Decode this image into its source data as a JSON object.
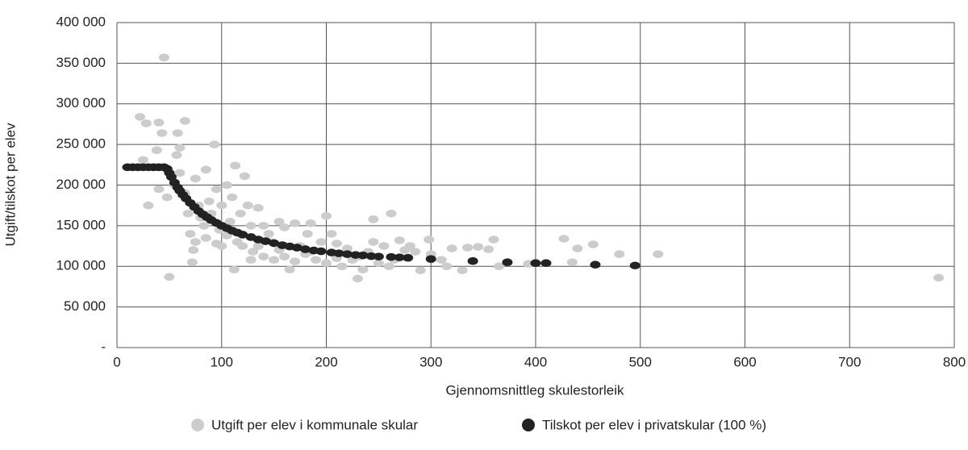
{
  "chart_data": {
    "type": "scatter",
    "xlabel": "Gjennomsnittleg skulestorleik",
    "ylabel": "Utgift/tilskot per elev",
    "xlim": [
      0,
      800
    ],
    "xticks": [
      0,
      100,
      200,
      300,
      400,
      500,
      600,
      700,
      800
    ],
    "ylim": [
      0,
      400000
    ],
    "yticks": [
      {
        "value": 0,
        "label": "-"
      },
      {
        "value": 50000,
        "label": "50 000"
      },
      {
        "value": 100000,
        "label": "100 000"
      },
      {
        "value": 150000,
        "label": "150 000"
      },
      {
        "value": 200000,
        "label": "200 000"
      },
      {
        "value": 250000,
        "label": "250 000"
      },
      {
        "value": 300000,
        "label": "300 000"
      },
      {
        "value": 350000,
        "label": "350 000"
      },
      {
        "value": 400000,
        "label": "400 000"
      }
    ],
    "grid": true,
    "series": [
      {
        "name": "Utgift per elev i kommunale skular",
        "color": "#cccccc",
        "x": [
          45,
          22,
          28,
          40,
          65,
          43,
          58,
          93,
          60,
          38,
          57,
          25,
          85,
          113,
          122,
          75,
          30,
          50,
          72,
          230,
          785,
          517,
          480,
          427,
          440,
          455,
          435,
          393,
          355,
          360,
          345,
          320,
          335,
          330,
          298,
          285,
          262,
          245,
          200,
          185,
          170,
          160,
          155,
          140,
          135,
          125,
          110,
          105,
          100,
          90,
          80,
          70,
          68,
          75,
          85,
          95,
          105,
          115,
          120,
          130,
          140,
          150,
          160,
          170,
          180,
          190,
          200,
          210,
          215,
          225,
          235,
          240,
          250,
          255,
          265,
          275,
          290,
          310,
          315,
          300,
          232,
          175,
          145,
          135,
          112,
          128,
          165,
          195,
          210,
          220,
          155,
          185,
          60,
          55,
          48,
          40,
          65,
          78,
          88,
          95,
          118,
          98,
          108,
          128,
          148,
          182,
          205,
          365,
          280,
          270,
          245,
          260,
          100,
          83,
          73
        ],
        "values": [
          357000,
          284000,
          276000,
          277000,
          279000,
          264000,
          264000,
          250000,
          246000,
          243000,
          237000,
          231000,
          219000,
          224000,
          211000,
          208000,
          175000,
          87000,
          105000,
          85000,
          86000,
          115000,
          115000,
          134000,
          122000,
          127000,
          105000,
          103000,
          121000,
          133000,
          124000,
          122000,
          123000,
          95000,
          133000,
          118000,
          165000,
          158000,
          162000,
          153000,
          153000,
          148000,
          155000,
          150000,
          172000,
          175000,
          185000,
          200000,
          175000,
          165000,
          160000,
          140000,
          165000,
          130000,
          135000,
          128000,
          138000,
          130000,
          125000,
          118000,
          112000,
          108000,
          112000,
          106000,
          115000,
          108000,
          104000,
          110000,
          100000,
          108000,
          96000,
          118000,
          104000,
          125000,
          108000,
          120000,
          95000,
          108000,
          100000,
          115000,
          112000,
          125000,
          140000,
          125000,
          96000,
          108000,
          96000,
          130000,
          128000,
          122000,
          120000,
          118000,
          215000,
          200000,
          185000,
          195000,
          190000,
          175000,
          180000,
          195000,
          165000,
          145000,
          155000,
          150000,
          130000,
          140000,
          140000,
          100000,
          125000,
          132000,
          130000,
          100000,
          125000,
          150000,
          120000
        ]
      },
      {
        "name": "Tilskot per elev i privatskular (100 %)",
        "color": "#222222",
        "x": [
          10,
          15,
          20,
          25,
          30,
          35,
          40,
          45,
          48,
          50,
          52,
          55,
          58,
          60,
          63,
          66,
          70,
          74,
          78,
          82,
          86,
          90,
          95,
          100,
          105,
          110,
          115,
          120,
          128,
          135,
          142,
          150,
          158,
          165,
          172,
          180,
          188,
          195,
          205,
          212,
          220,
          228,
          235,
          243,
          250,
          262,
          270,
          278,
          300,
          340,
          373,
          400,
          410,
          457,
          495
        ],
        "values": [
          222000,
          222000,
          222000,
          222000,
          222000,
          222000,
          222000,
          222000,
          220000,
          215000,
          210000,
          203000,
          197000,
          193000,
          188000,
          183500,
          178000,
          173000,
          168000,
          164000,
          160500,
          157000,
          153500,
          150000,
          147000,
          144000,
          141500,
          139000,
          136000,
          133000,
          131000,
          128500,
          126000,
          124500,
          123000,
          121000,
          119500,
          118500,
          117000,
          116000,
          115000,
          114000,
          113500,
          112500,
          112000,
          111500,
          111000,
          110500,
          109000,
          106500,
          105000,
          104000,
          104000,
          102000,
          101000
        ]
      }
    ]
  }
}
